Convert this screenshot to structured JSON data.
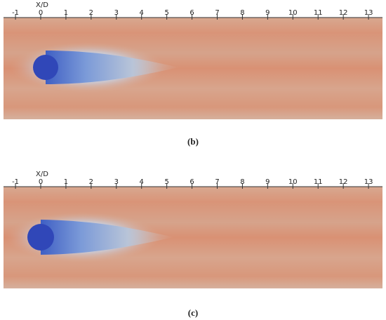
{
  "panels": [
    {
      "axis_label": "X/D",
      "ticks": [
        -1,
        0,
        1,
        2,
        3,
        4,
        5,
        6,
        7,
        8,
        9,
        10,
        11,
        12,
        13
      ],
      "caption": "(b)"
    },
    {
      "axis_label": "X/D",
      "ticks": [
        -1,
        0,
        1,
        2,
        3,
        4,
        5,
        6,
        7,
        8,
        9,
        10,
        11,
        12,
        13
      ],
      "caption": "(c)"
    }
  ]
}
